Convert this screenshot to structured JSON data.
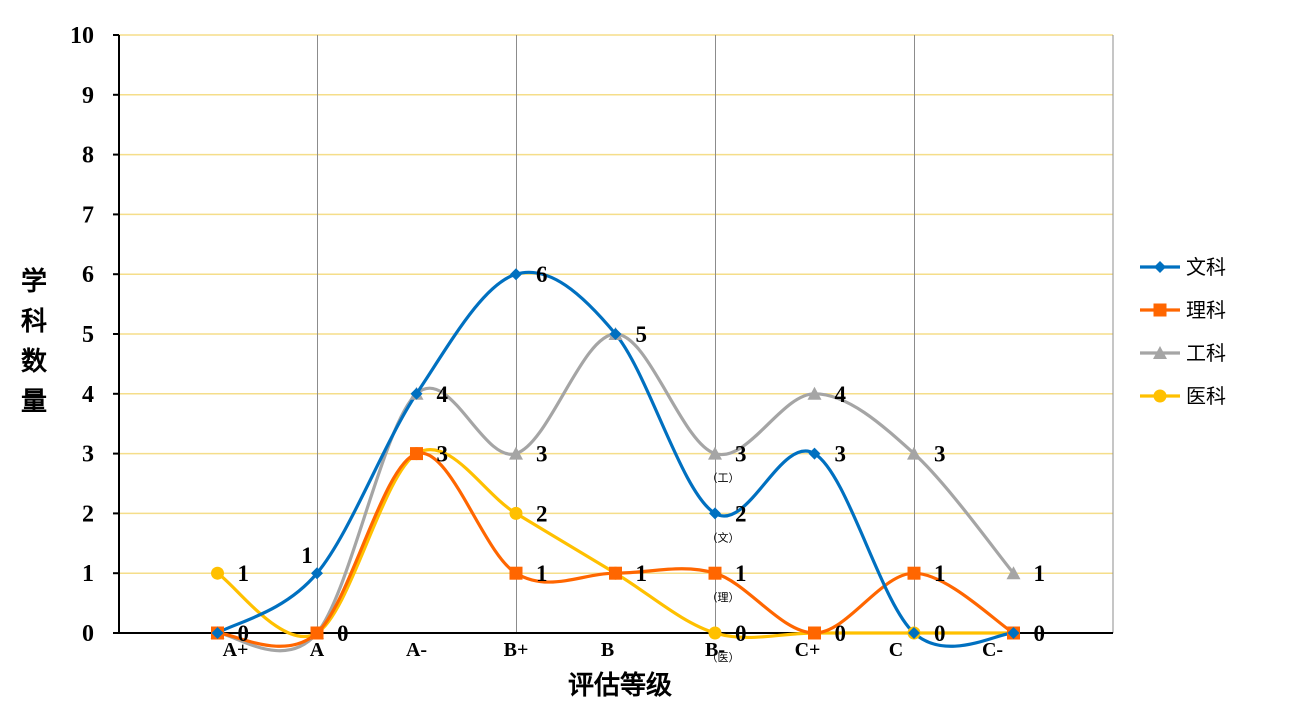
{
  "chart_data": {
    "type": "line",
    "smooth": true,
    "title": "",
    "xlabel": "评估等级",
    "ylabel": "学科数量",
    "categories": [
      "A+",
      "A",
      "A-",
      "B+",
      "B",
      "B-",
      "C+",
      "C",
      "C-"
    ],
    "ylim": [
      0,
      10
    ],
    "yticks": [
      0,
      1,
      2,
      3,
      4,
      5,
      6,
      7,
      8,
      9,
      10
    ],
    "grid": "horizontal gold lines and vertical gray lines",
    "legend": "right",
    "series": [
      {
        "name": "文科",
        "color": "#0070C0",
        "marker": "diamond",
        "values": [
          0,
          1,
          4,
          6,
          5,
          2,
          3,
          0,
          0
        ]
      },
      {
        "name": "理科",
        "color": "#FF6600",
        "marker": "square",
        "values": [
          0,
          0,
          3,
          1,
          1,
          1,
          0,
          1,
          0
        ]
      },
      {
        "name": "工科",
        "color": "#A5A5A5",
        "marker": "triangle",
        "values": [
          0,
          0,
          4,
          3,
          5,
          3,
          4,
          3,
          1
        ]
      },
      {
        "name": "医科",
        "color": "#FFC000",
        "marker": "circle",
        "values": [
          1,
          0,
          3,
          2,
          1,
          0,
          0,
          0,
          0
        ]
      }
    ],
    "data_labels": [
      {
        "category": "A+",
        "value": 1
      },
      {
        "category": "A+",
        "value": 0
      },
      {
        "category": "A",
        "value": 1,
        "placement": "above"
      },
      {
        "category": "A",
        "value": 0
      },
      {
        "category": "A-",
        "value": 4
      },
      {
        "category": "A-",
        "value": 3
      },
      {
        "category": "B+",
        "value": 6
      },
      {
        "category": "B+",
        "value": 3
      },
      {
        "category": "B+",
        "value": 2
      },
      {
        "category": "B+",
        "value": 1
      },
      {
        "category": "B",
        "value": 5
      },
      {
        "category": "B",
        "value": 1
      },
      {
        "category": "B-",
        "value": 3,
        "note": "（工）"
      },
      {
        "category": "B-",
        "value": 2,
        "note": "（文）"
      },
      {
        "category": "B-",
        "value": 1,
        "note": "（理）"
      },
      {
        "category": "B-",
        "value": 0,
        "note": "（医）"
      },
      {
        "category": "C+",
        "value": 4
      },
      {
        "category": "C+",
        "value": 3
      },
      {
        "category": "C+",
        "value": 0
      },
      {
        "category": "C",
        "value": 3
      },
      {
        "category": "C",
        "value": 1
      },
      {
        "category": "C",
        "value": 0
      },
      {
        "category": "C-",
        "value": 1
      },
      {
        "category": "C-",
        "value": 0
      }
    ]
  }
}
